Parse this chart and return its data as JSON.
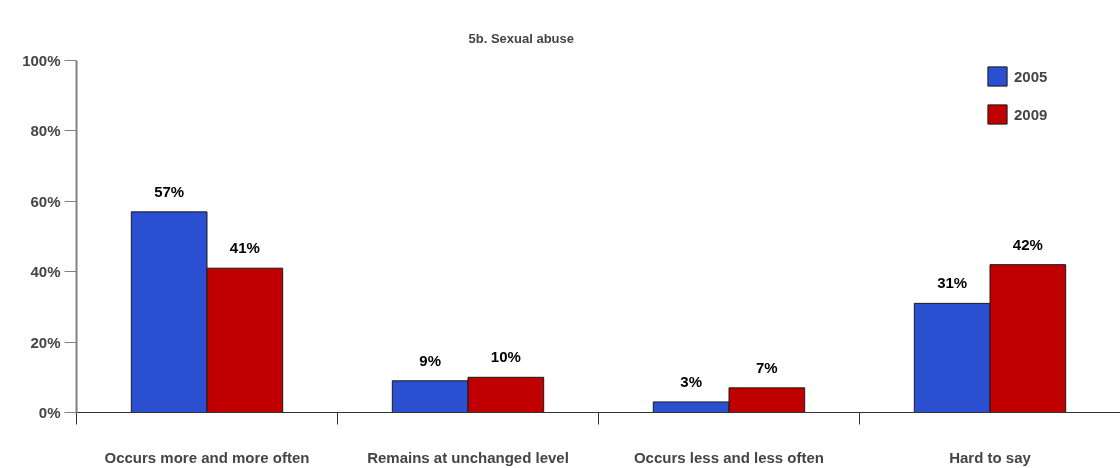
{
  "chart_data": {
    "type": "bar",
    "title": "5b. Sexual abuse",
    "categories": [
      "Occurs more and more often",
      "Remains at unchanged level",
      "Occurs less and less often",
      "Hard to say"
    ],
    "series": [
      {
        "name": "2005",
        "color": "#2a4fd0",
        "values": [
          57,
          9,
          3,
          31
        ],
        "value_labels": [
          "57%",
          "9%",
          "3%",
          "31%"
        ]
      },
      {
        "name": "2009",
        "color": "#c00000",
        "values": [
          41,
          10,
          7,
          42
        ],
        "value_labels": [
          "41%",
          "10%",
          "7%",
          "42%"
        ]
      }
    ],
    "ylim": [
      0,
      100
    ],
    "yticks": [
      {
        "value": 0,
        "label": "0%"
      },
      {
        "value": 20,
        "label": "20%"
      },
      {
        "value": 40,
        "label": "40%"
      },
      {
        "value": 60,
        "label": "60%"
      },
      {
        "value": 80,
        "label": "80%"
      },
      {
        "value": 100,
        "label": "100%"
      }
    ],
    "legend": "top right"
  }
}
